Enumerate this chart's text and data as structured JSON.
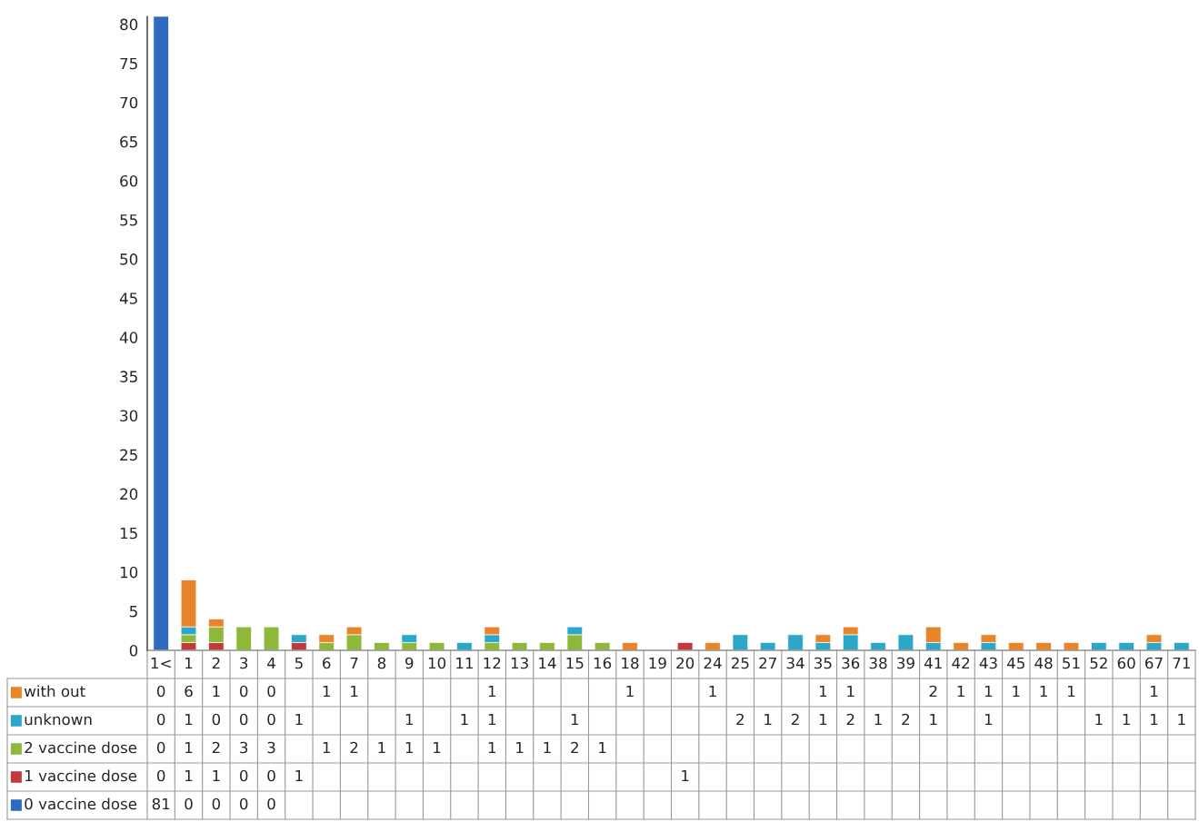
{
  "chart_data": {
    "type": "bar",
    "stacked": true,
    "data_labels": true,
    "grid": false,
    "legend": "bottom",
    "categories": [
      "1<",
      "1",
      "2",
      "3",
      "4",
      "5",
      "6",
      "7",
      "8",
      "9",
      "10",
      "11",
      "12",
      "13",
      "14",
      "15",
      "16",
      "18",
      "19",
      "20",
      "24",
      "25",
      "27",
      "34",
      "35",
      "36",
      "38",
      "39",
      "41",
      "42",
      "43",
      "45",
      "48",
      "51",
      "52",
      "60",
      "67",
      "71"
    ],
    "ylim": [
      0,
      81
    ],
    "yticks": [
      0,
      5,
      10,
      15,
      20,
      25,
      30,
      35,
      40,
      45,
      50,
      55,
      60,
      65,
      70,
      75,
      80
    ],
    "series": [
      {
        "name": "0 vaccine dose",
        "color": "#2e6bbf",
        "values": [
          81,
          0,
          0,
          0,
          0,
          null,
          null,
          null,
          null,
          null,
          null,
          null,
          null,
          null,
          null,
          null,
          null,
          null,
          null,
          null,
          null,
          null,
          null,
          null,
          null,
          null,
          null,
          null,
          null,
          null,
          null,
          null,
          null,
          null,
          null,
          null,
          null,
          null
        ]
      },
      {
        "name": "1 vaccine dose",
        "color": "#c0393b",
        "values": [
          0,
          1,
          1,
          0,
          0,
          1,
          null,
          null,
          null,
          null,
          null,
          null,
          null,
          null,
          null,
          null,
          null,
          null,
          null,
          1,
          null,
          null,
          null,
          null,
          null,
          null,
          null,
          null,
          null,
          null,
          null,
          null,
          null,
          null,
          null,
          null,
          null,
          null
        ]
      },
      {
        "name": "2 vaccine dose",
        "color": "#8db83a",
        "values": [
          0,
          1,
          2,
          3,
          3,
          null,
          1,
          2,
          1,
          1,
          1,
          null,
          1,
          1,
          1,
          2,
          1,
          null,
          null,
          null,
          null,
          null,
          null,
          null,
          null,
          null,
          null,
          null,
          null,
          null,
          null,
          null,
          null,
          null,
          null,
          null,
          null,
          null
        ]
      },
      {
        "name": "unknown",
        "color": "#2ca7c8",
        "values": [
          0,
          1,
          0,
          0,
          0,
          1,
          null,
          null,
          null,
          1,
          null,
          1,
          1,
          null,
          null,
          1,
          null,
          null,
          null,
          null,
          null,
          2,
          1,
          2,
          1,
          2,
          1,
          2,
          1,
          null,
          1,
          null,
          null,
          null,
          1,
          1,
          1,
          1
        ]
      },
      {
        "name": "with out",
        "color": "#e8842a",
        "values": [
          0,
          6,
          1,
          0,
          0,
          null,
          1,
          1,
          null,
          null,
          null,
          null,
          1,
          null,
          null,
          null,
          null,
          1,
          null,
          null,
          1,
          null,
          null,
          null,
          1,
          1,
          null,
          null,
          2,
          1,
          1,
          1,
          1,
          1,
          null,
          null,
          1,
          null
        ]
      }
    ]
  }
}
